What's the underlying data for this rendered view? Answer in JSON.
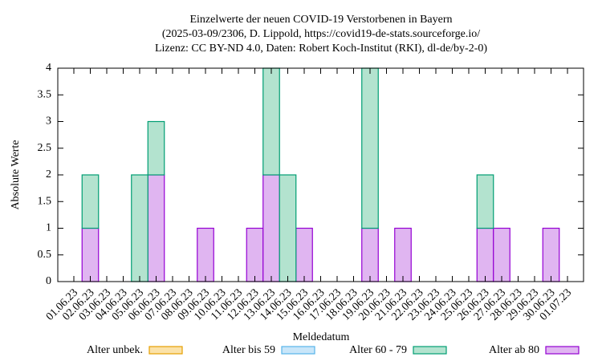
{
  "chart_data": {
    "type": "stacked-bar",
    "title": [
      "Einzelwerte der neuen COVID-19 Verstorbenen in Bayern",
      "(2025-03-09/2306, D. Lippold, https://covid19-de-stats.sourceforge.io/",
      "Lizenz: CC BY-ND 4.0, Daten: Robert Koch-Institut (RKI), dl-de/by-2-0)"
    ],
    "y_label": "Absolute Werte",
    "x_label": "Meldedatum",
    "categories": [
      "01.06.23",
      "02.06.23",
      "03.06.23",
      "04.06.23",
      "05.06.23",
      "06.06.23",
      "07.06.23",
      "08.06.23",
      "09.06.23",
      "10.06.23",
      "11.06.23",
      "12.06.23",
      "13.06.23",
      "14.06.23",
      "15.06.23",
      "16.06.23",
      "17.06.23",
      "18.06.23",
      "19.06.23",
      "20.06.23",
      "21.06.23",
      "22.06.23",
      "23.06.23",
      "24.06.23",
      "25.06.23",
      "26.06.23",
      "27.06.23",
      "28.06.23",
      "29.06.23",
      "30.06.23",
      "01.07.23"
    ],
    "series": [
      {
        "name": "Alter unbek.",
        "color": "#fbe2a8",
        "stroke": "#e69f00",
        "values": [
          0,
          0,
          0,
          0,
          0,
          0,
          0,
          0,
          0,
          0,
          0,
          0,
          0,
          0,
          0,
          0,
          0,
          0,
          0,
          0,
          0,
          0,
          0,
          0,
          0,
          0,
          0,
          0,
          0,
          0,
          0
        ]
      },
      {
        "name": "Alter bis 59",
        "color": "#c9e6f9",
        "stroke": "#56b4e9",
        "values": [
          0,
          0,
          0,
          0,
          0,
          0,
          0,
          0,
          0,
          0,
          0,
          0,
          0,
          0,
          0,
          0,
          0,
          0,
          0,
          0,
          0,
          0,
          0,
          0,
          0,
          0,
          0,
          0,
          0,
          0,
          0
        ]
      },
      {
        "name": "Alter 60 - 79",
        "color": "#b3e3cf",
        "stroke": "#009e73",
        "values": [
          0,
          1,
          0,
          0,
          2,
          1,
          0,
          0,
          0,
          0,
          0,
          0,
          2,
          2,
          0,
          0,
          0,
          0,
          3,
          0,
          0,
          0,
          0,
          0,
          0,
          1,
          0,
          0,
          0,
          0,
          0
        ]
      },
      {
        "name": "Alter ab 80",
        "color": "#e0b5f1",
        "stroke": "#9400d3",
        "values": [
          0,
          1,
          0,
          0,
          0,
          2,
          0,
          0,
          1,
          0,
          0,
          1,
          2,
          0,
          1,
          0,
          0,
          0,
          1,
          0,
          1,
          0,
          0,
          0,
          0,
          1,
          1,
          0,
          0,
          1,
          0
        ]
      }
    ],
    "ylim": [
      0,
      4
    ],
    "yticks": [
      0,
      0.5,
      1,
      1.5,
      2,
      2.5,
      3,
      3.5,
      4
    ],
    "grid": false
  }
}
